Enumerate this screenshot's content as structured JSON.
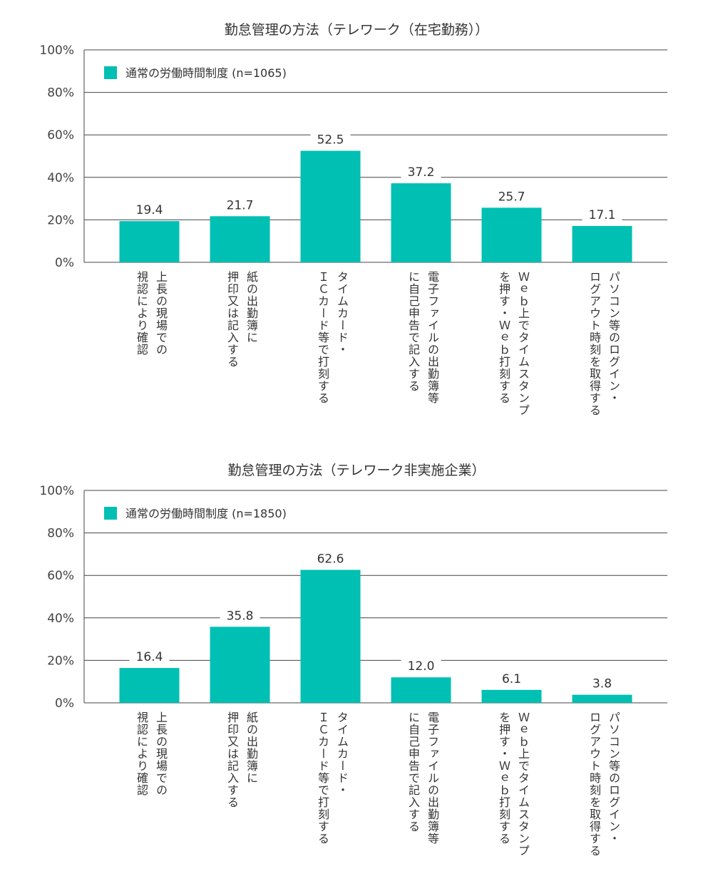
{
  "accent": "#00bfb3",
  "chart_data": [
    {
      "type": "bar",
      "title": "勤怠管理の方法（テレワーク（在宅勤務））",
      "legend": "通常の労働時間制度 (n=1065)",
      "categories": [
        [
          "上長の現場での",
          "視認により確認"
        ],
        [
          "紙の出勤簿に",
          "押印又は記入する"
        ],
        [
          "タイムカード・",
          "ＩＣカード等で打刻する"
        ],
        [
          "電子ファイルの出勤簿等",
          "に自己申告で記入する"
        ],
        [
          "Ｗｅｂ上でタイムスタンプ",
          "を押す・Ｗｅｂ打刻する"
        ],
        [
          "パソコン等のログイン・",
          "ログアウト時刻を取得する"
        ]
      ],
      "values": [
        19.4,
        21.7,
        52.5,
        37.2,
        25.7,
        17.1
      ],
      "value_labels": [
        "19.4",
        "21.7",
        "52.5",
        "37.2",
        "25.7",
        "17.1"
      ],
      "yticks": [
        "100%",
        "80%",
        "60%",
        "40%",
        "20%",
        "0%"
      ],
      "ylim": [
        0,
        100
      ],
      "grid": true,
      "legend_position": "top-left"
    },
    {
      "type": "bar",
      "title": "勤怠管理の方法（テレワーク非実施企業）",
      "legend": "通常の労働時間制度 (n=1850)",
      "categories": [
        [
          "上長の現場での",
          "視認により確認"
        ],
        [
          "紙の出勤簿に",
          "押印又は記入する"
        ],
        [
          "タイムカード・",
          "ＩＣカード等で打刻する"
        ],
        [
          "電子ファイルの出勤簿等",
          "に自己申告で記入する"
        ],
        [
          "Ｗｅｂ上でタイムスタンプ",
          "を押す・Ｗｅｂ打刻する"
        ],
        [
          "パソコン等のログイン・",
          "ログアウト時刻を取得する"
        ]
      ],
      "values": [
        16.4,
        35.8,
        62.6,
        12.0,
        6.1,
        3.8
      ],
      "value_labels": [
        "16.4",
        "35.8",
        "62.6",
        "12.0",
        "6.1",
        "3.8"
      ],
      "yticks": [
        "100%",
        "80%",
        "60%",
        "40%",
        "20%",
        "0%"
      ],
      "ylim": [
        0,
        100
      ],
      "grid": true,
      "legend_position": "top-left"
    }
  ]
}
